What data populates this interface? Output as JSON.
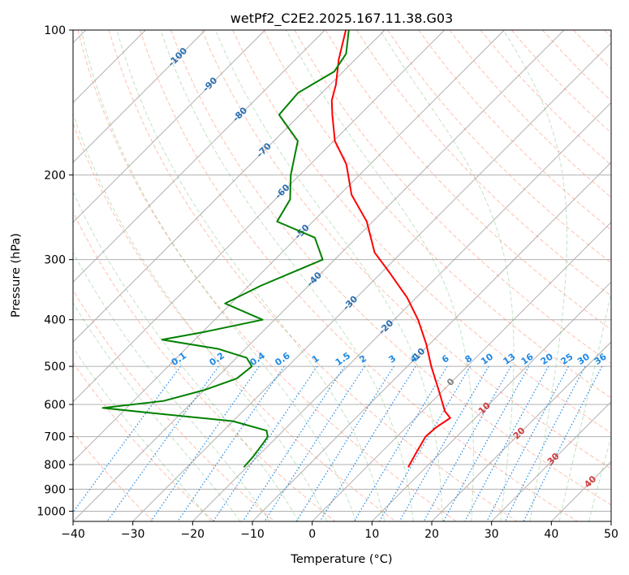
{
  "chart_data": {
    "type": "line",
    "title": "wetPf2_C2E2.2025.167.11.38.G03",
    "xlabel": "Temperature (°C)",
    "ylabel": "Pressure (hPa)",
    "xlim": [
      -40,
      50
    ],
    "ylim": [
      1050,
      100
    ],
    "y_scale": "log",
    "skew": true,
    "grid": true,
    "x_ticks": [
      -40,
      -30,
      -20,
      -10,
      0,
      10,
      20,
      30,
      40,
      50
    ],
    "y_ticks": [
      100,
      200,
      300,
      400,
      500,
      600,
      700,
      800,
      900,
      1000
    ],
    "series": [
      {
        "color": "#ff0000",
        "points": [
          {
            "p": 810,
            "t": 7.0
          },
          {
            "p": 760,
            "t": 6.0
          },
          {
            "p": 700,
            "t": 4.8
          },
          {
            "p": 670,
            "t": 5.0
          },
          {
            "p": 640,
            "t": 5.8
          },
          {
            "p": 620,
            "t": 3.8
          },
          {
            "p": 560,
            "t": -0.8
          },
          {
            "p": 500,
            "t": -6.0
          },
          {
            "p": 450,
            "t": -10.5
          },
          {
            "p": 400,
            "t": -16.0
          },
          {
            "p": 360,
            "t": -21.5
          },
          {
            "p": 320,
            "t": -28.5
          },
          {
            "p": 290,
            "t": -34.5
          },
          {
            "p": 250,
            "t": -41.0
          },
          {
            "p": 220,
            "t": -48.0
          },
          {
            "p": 190,
            "t": -54.0
          },
          {
            "p": 170,
            "t": -59.8
          },
          {
            "p": 150,
            "t": -64.6
          },
          {
            "p": 140,
            "t": -67.1
          },
          {
            "p": 130,
            "t": -69.0
          },
          {
            "p": 115,
            "t": -72.8
          },
          {
            "p": 100,
            "t": -76.5
          }
        ]
      },
      {
        "color": "#008000",
        "points": [
          {
            "p": 810,
            "t": -20.5
          },
          {
            "p": 770,
            "t": -20.7
          },
          {
            "p": 720,
            "t": -21.3
          },
          {
            "p": 700,
            "t": -21.6
          },
          {
            "p": 680,
            "t": -22.8
          },
          {
            "p": 650,
            "t": -30.0
          },
          {
            "p": 625,
            "t": -45.0
          },
          {
            "p": 610,
            "t": -54.0
          },
          {
            "p": 590,
            "t": -45.0
          },
          {
            "p": 560,
            "t": -40.0
          },
          {
            "p": 530,
            "t": -36.5
          },
          {
            "p": 500,
            "t": -36.0
          },
          {
            "p": 480,
            "t": -38.3
          },
          {
            "p": 460,
            "t": -44.5
          },
          {
            "p": 440,
            "t": -55.5
          },
          {
            "p": 425,
            "t": -50.0
          },
          {
            "p": 400,
            "t": -42.0
          },
          {
            "p": 370,
            "t": -51.0
          },
          {
            "p": 340,
            "t": -48.0
          },
          {
            "p": 300,
            "t": -42.0
          },
          {
            "p": 270,
            "t": -47.0
          },
          {
            "p": 250,
            "t": -56.0
          },
          {
            "p": 225,
            "t": -57.5
          },
          {
            "p": 200,
            "t": -61.5
          },
          {
            "p": 170,
            "t": -66.0
          },
          {
            "p": 150,
            "t": -73.5
          },
          {
            "p": 135,
            "t": -74.0
          },
          {
            "p": 122,
            "t": -71.5
          },
          {
            "p": 112,
            "t": -72.5
          },
          {
            "p": 100,
            "t": -76.0
          }
        ]
      }
    ],
    "dry_adiabat_labels": [
      "-100",
      "-90",
      "-80",
      "-70",
      "-60",
      "-50",
      "-40",
      "-30",
      "-20",
      "-10",
      "0",
      "10",
      "20",
      "30",
      "40"
    ],
    "mixing_ratio_labels": [
      "0.1",
      "0.2",
      "0.4",
      "0.6",
      "1",
      "1.5",
      "2",
      "3",
      "4",
      "6",
      "8",
      "10",
      "13",
      "16",
      "20",
      "25",
      "30",
      "36"
    ]
  }
}
